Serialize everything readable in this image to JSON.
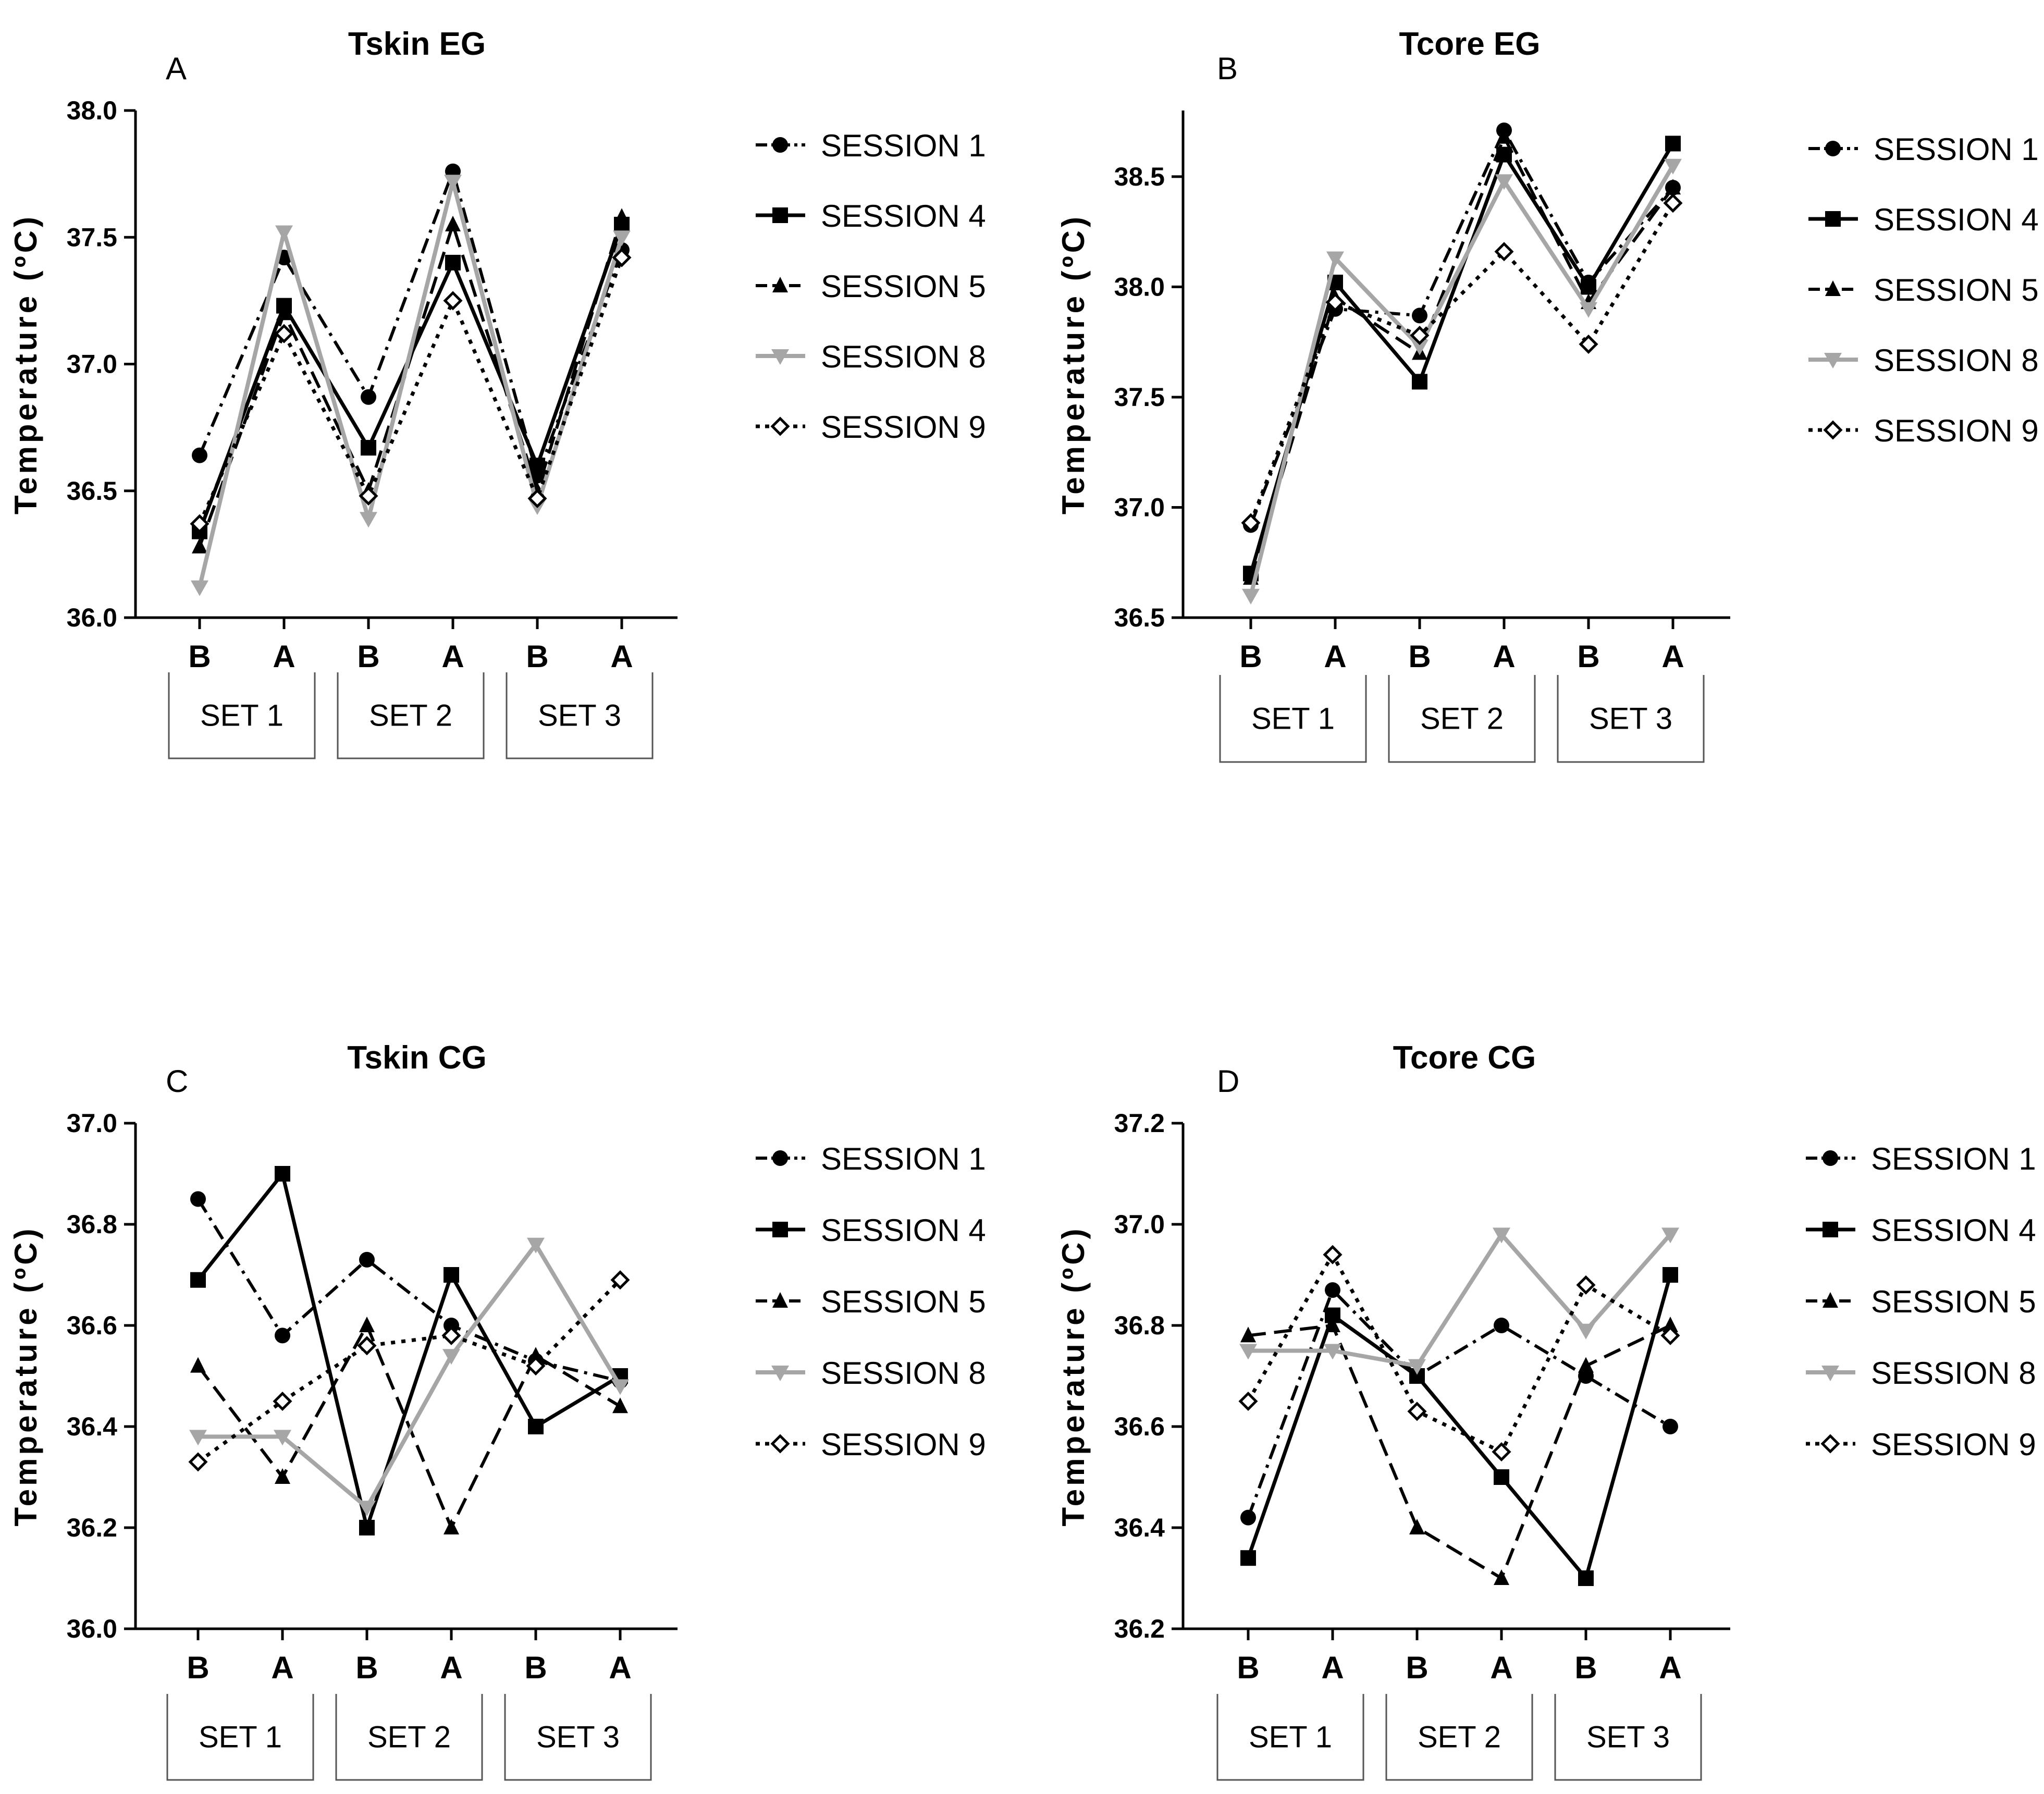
{
  "chart_data": [
    {
      "type": "line",
      "panel_letter": "A",
      "title": "Tskin EG",
      "ylabel": "Temperature  (ºC)",
      "ylim": [
        36.0,
        38.0
      ],
      "yticks": [
        "36.0",
        "36.5",
        "37.0",
        "37.5",
        "38.0"
      ],
      "categories": [
        "B",
        "A",
        "B",
        "A",
        "B",
        "A"
      ],
      "groups": [
        "SET 1",
        "SET 2",
        "SET 3"
      ],
      "series": [
        {
          "name": "SESSION  1",
          "values": [
            36.64,
            37.42,
            36.87,
            37.76,
            36.56,
            37.45
          ]
        },
        {
          "name": "SESSION 4",
          "values": [
            36.34,
            37.23,
            36.67,
            37.4,
            36.6,
            37.55
          ]
        },
        {
          "name": "SESSION 5",
          "values": [
            36.28,
            37.2,
            36.5,
            37.55,
            36.5,
            37.58
          ]
        },
        {
          "name": "SESSION 8",
          "values": [
            36.12,
            37.52,
            36.39,
            37.72,
            36.44,
            37.5
          ]
        },
        {
          "name": "SESSION 9",
          "values": [
            36.37,
            37.12,
            36.48,
            37.25,
            36.47,
            37.42
          ]
        }
      ]
    },
    {
      "type": "line",
      "panel_letter": "B",
      "title": "Tcore EG",
      "ylabel": "Temperature  (ºC)",
      "ylim": [
        36.5,
        38.8
      ],
      "yticks": [
        "36.5",
        "37.0",
        "37.5",
        "38.0",
        "38.5"
      ],
      "categories": [
        "B",
        "A",
        "B",
        "A",
        "B",
        "A"
      ],
      "groups": [
        "SET 1",
        "SET 2",
        "SET 3"
      ],
      "series": [
        {
          "name": "SESSION  1",
          "values": [
            36.92,
            37.9,
            37.87,
            38.71,
            38.02,
            38.45
          ]
        },
        {
          "name": "SESSION 4",
          "values": [
            36.7,
            38.02,
            37.57,
            38.6,
            38.0,
            38.65
          ]
        },
        {
          "name": "SESSION 5",
          "values": [
            36.68,
            37.95,
            37.7,
            38.68,
            37.93,
            38.45
          ]
        },
        {
          "name": "SESSION 8",
          "values": [
            36.6,
            38.13,
            37.73,
            38.48,
            37.9,
            38.55
          ]
        },
        {
          "name": "SESSION 9",
          "values": [
            36.93,
            37.93,
            37.78,
            38.16,
            37.74,
            38.38
          ]
        }
      ]
    },
    {
      "type": "line",
      "panel_letter": "C",
      "title": "Tskin CG",
      "ylabel": "Temperature  (ºC)",
      "ylim": [
        36.0,
        37.0
      ],
      "yticks": [
        "36.0",
        "36.2",
        "36.4",
        "36.6",
        "36.8",
        "37.0"
      ],
      "categories": [
        "B",
        "A",
        "B",
        "A",
        "B",
        "A"
      ],
      "groups": [
        "SET 1",
        "SET 2",
        "SET 3"
      ],
      "series": [
        {
          "name": "SESSION  1",
          "values": [
            36.85,
            36.58,
            36.73,
            36.6,
            36.53,
            36.49
          ]
        },
        {
          "name": "SESSION 4",
          "values": [
            36.69,
            36.9,
            36.2,
            36.7,
            36.4,
            36.5
          ]
        },
        {
          "name": "SESSION 5",
          "values": [
            36.52,
            36.3,
            36.6,
            36.2,
            36.54,
            36.44
          ]
        },
        {
          "name": "SESSION 8",
          "values": [
            36.38,
            36.38,
            36.24,
            36.54,
            36.76,
            36.48
          ]
        },
        {
          "name": "SESSION 9",
          "values": [
            36.33,
            36.45,
            36.56,
            36.58,
            36.52,
            36.69
          ]
        }
      ]
    },
    {
      "type": "line",
      "panel_letter": "D",
      "title": "Tcore CG",
      "ylabel": "Temperature  (ºC)",
      "ylim": [
        36.2,
        37.2
      ],
      "yticks": [
        "36.2",
        "36.4",
        "36.6",
        "36.8",
        "37.0",
        "37.2"
      ],
      "categories": [
        "B",
        "A",
        "B",
        "A",
        "B",
        "A"
      ],
      "groups": [
        "SET 1",
        "SET 2",
        "SET 3"
      ],
      "series": [
        {
          "name": "SESSION  1",
          "values": [
            36.42,
            36.87,
            36.7,
            36.8,
            36.7,
            36.6
          ]
        },
        {
          "name": "SESSION 4",
          "values": [
            36.34,
            36.82,
            36.7,
            36.5,
            36.3,
            36.9
          ]
        },
        {
          "name": "SESSION 5",
          "values": [
            36.78,
            36.8,
            36.4,
            36.3,
            36.72,
            36.8
          ]
        },
        {
          "name": "SESSION 8",
          "values": [
            36.75,
            36.75,
            36.72,
            36.98,
            36.79,
            36.98
          ]
        },
        {
          "name": "SESSION 9",
          "values": [
            36.65,
            36.94,
            36.63,
            36.55,
            36.88,
            36.78
          ]
        }
      ]
    }
  ]
}
